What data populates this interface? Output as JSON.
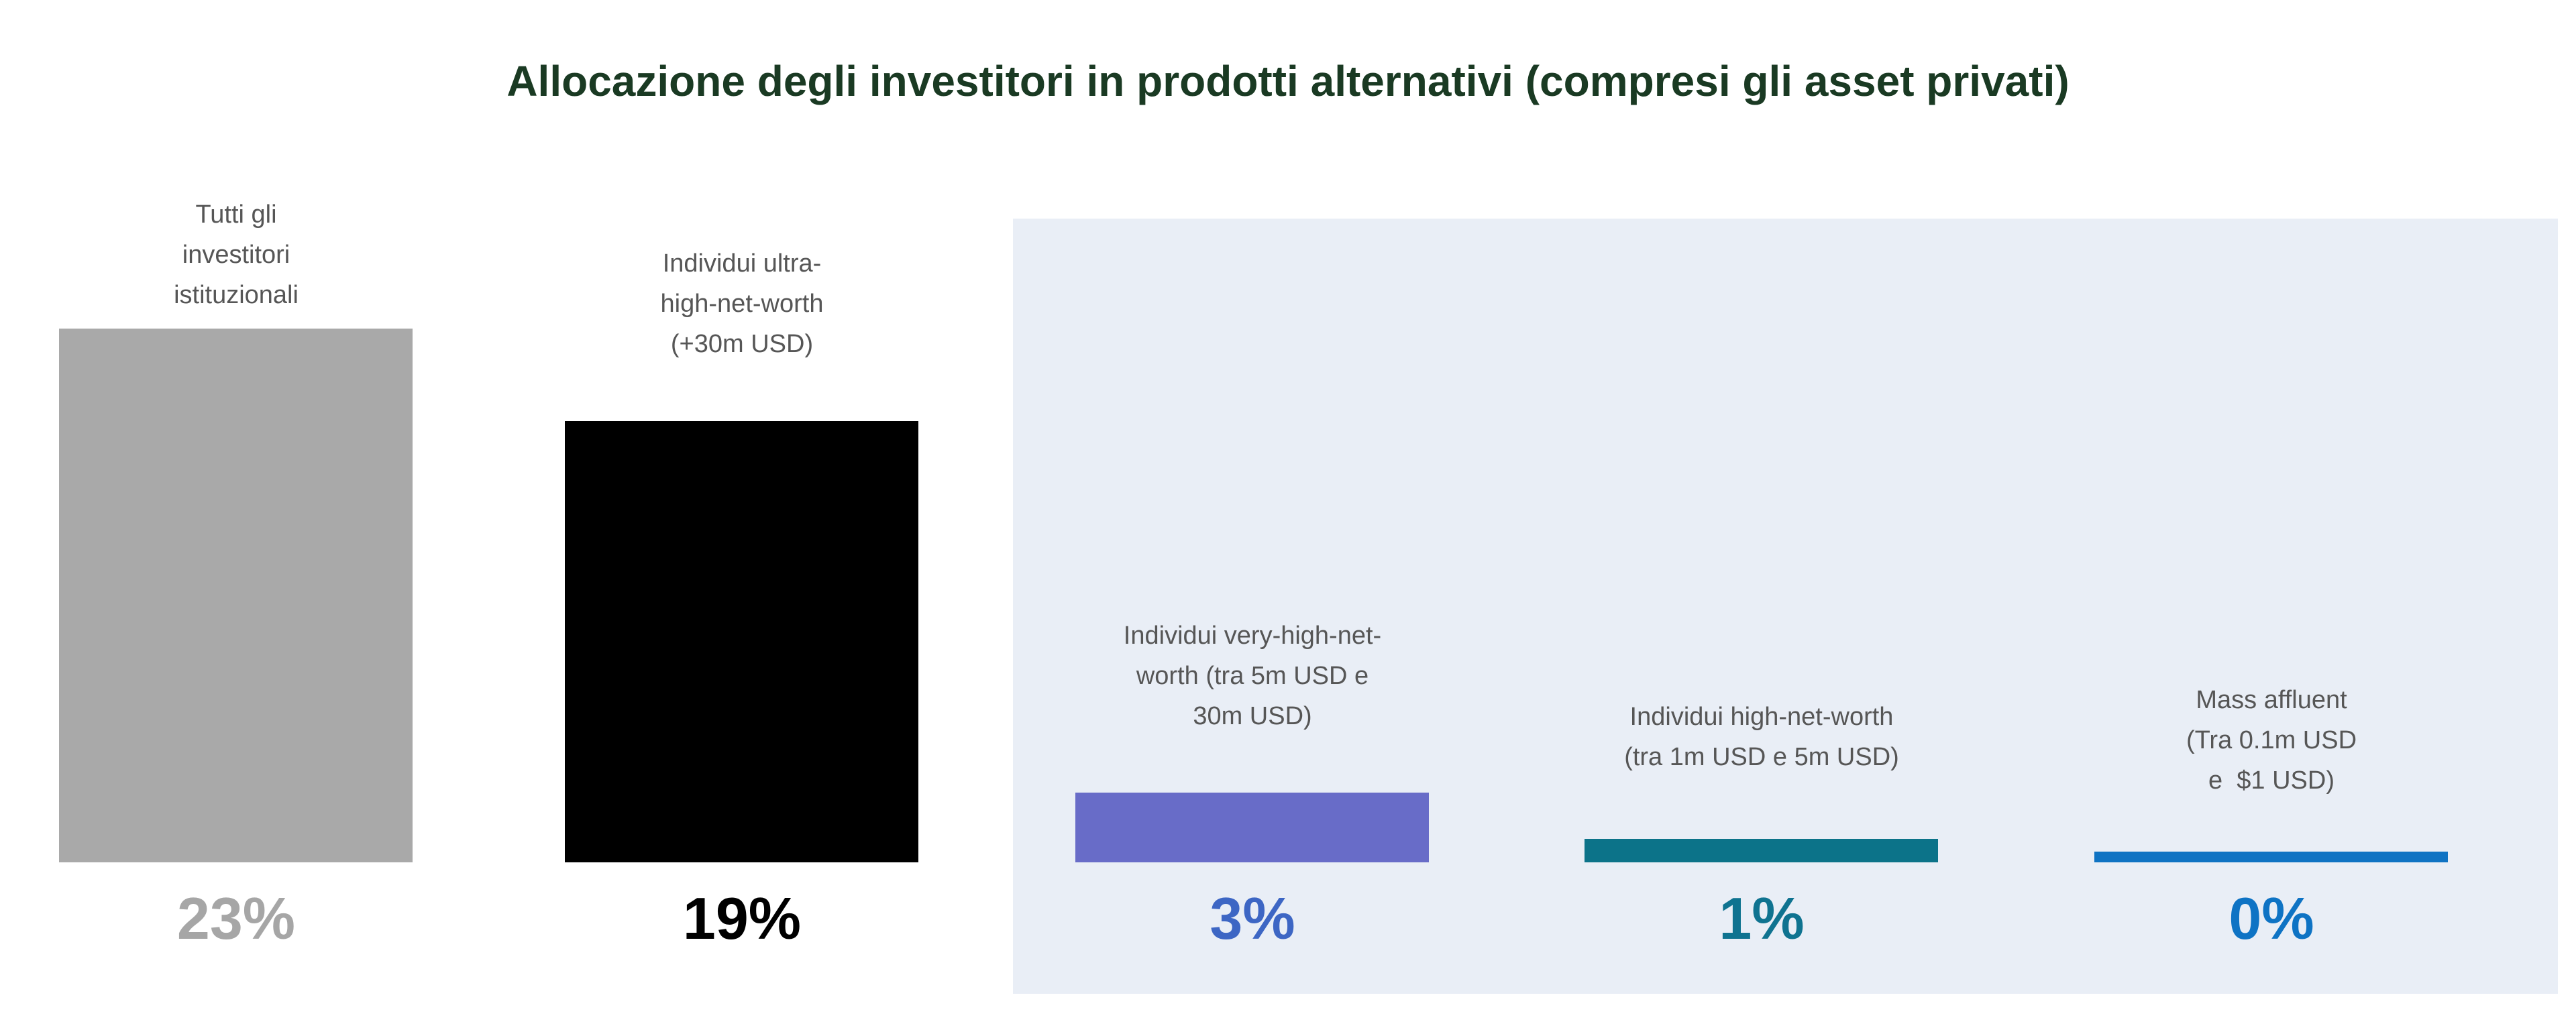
{
  "title": "Allocazione degli investitori in prodotti alternativi (compresi gli asset privati)",
  "title_color": "#1a3a23",
  "panel_color": "#e9eef6",
  "chart_data": {
    "type": "bar",
    "title": "Allocazione degli investitori in prodotti alternativi (compresi gli asset privati)",
    "xlabel": "",
    "ylabel": "",
    "unit": "%",
    "ylim": [
      0,
      23
    ],
    "grid": false,
    "legend": "none",
    "label_color": "#565656",
    "categories": [
      "Tutti gli\ninvestitori\nistituzionali",
      "Individui ultra-\nhigh-net-worth\n(+30m USD)",
      "Individui very-high-net-\nworth (tra 5m USD e\n30m USD)",
      "Individui high-net-worth\n(tra 1m USD e 5m USD)",
      "Mass affluent\n(Tra 0.1m USD\ne  $1 USD)"
    ],
    "values": [
      23,
      19,
      3,
      1,
      0
    ],
    "value_labels": [
      "23%",
      "19%",
      "3%",
      "1%",
      "0%"
    ],
    "bar_colors": [
      "#a9a9a9",
      "#000000",
      "#686cc8",
      "#0c7389",
      "#0f73c3"
    ],
    "value_colors": [
      "#a6a6a6",
      "#000000",
      "#3d66c4",
      "#0f7390",
      "#0e73c4"
    ],
    "highlighted_categories_on_panel": [
      2,
      3,
      4
    ]
  }
}
